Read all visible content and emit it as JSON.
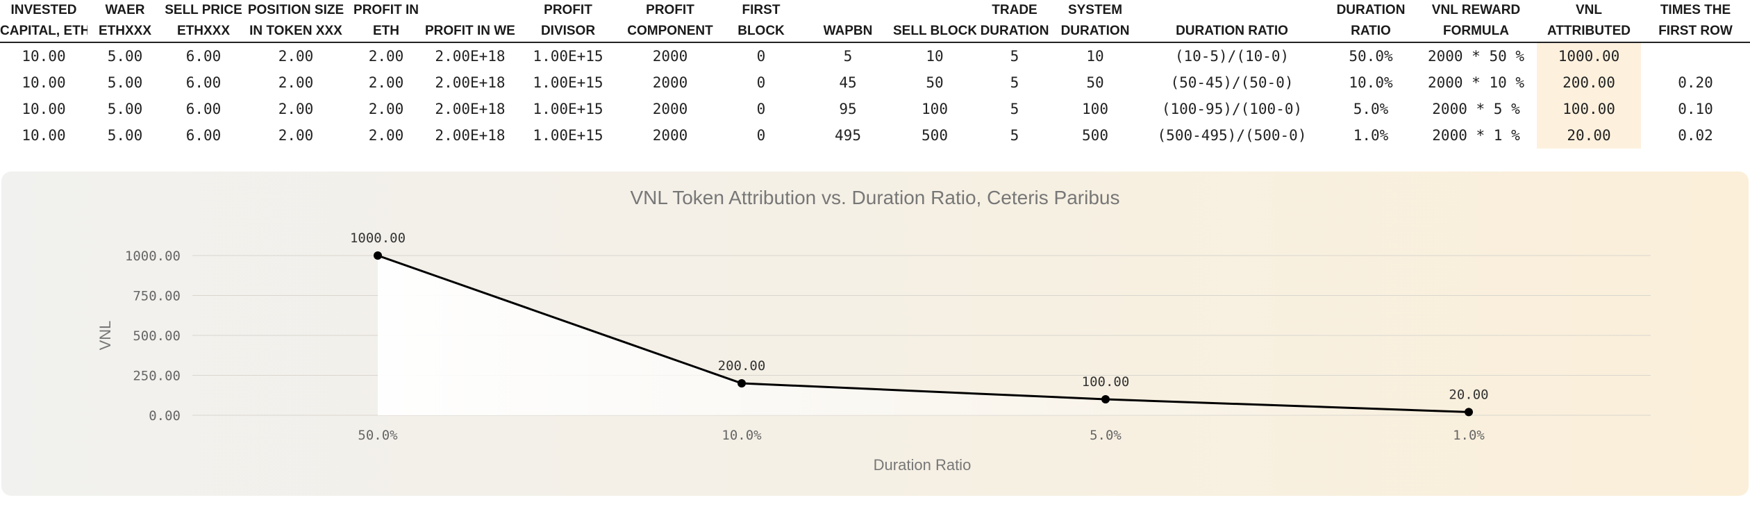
{
  "table": {
    "headers": [
      [
        "INVESTED",
        "CAPITAL, ETH"
      ],
      [
        "WAER",
        "ETHXXX"
      ],
      [
        "SELL PRICE",
        "ETHXXX"
      ],
      [
        "POSITION SIZE",
        "IN TOKEN XXX"
      ],
      [
        "PROFIT IN",
        "ETH"
      ],
      [
        "",
        "PROFIT IN WEI"
      ],
      [
        "PROFIT",
        "DIVISOR"
      ],
      [
        "PROFIT",
        "COMPONENT"
      ],
      [
        "FIRST",
        "BLOCK"
      ],
      [
        "",
        "WAPBN"
      ],
      [
        "",
        "SELL BLOCK"
      ],
      [
        "TRADE",
        "DURATION"
      ],
      [
        "SYSTEM",
        "DURATION"
      ],
      [
        "",
        "DURATION RATIO"
      ],
      [
        "DURATION",
        "RATIO"
      ],
      [
        "VNL REWARD",
        "FORMULA"
      ],
      [
        "VNL",
        "ATTRIBUTED"
      ],
      [
        "TIMES THE",
        "FIRST ROW"
      ]
    ],
    "rows": [
      [
        "10.00",
        "5.00",
        "6.00",
        "2.00",
        "2.00",
        "2.00E+18",
        "1.00E+15",
        "2000",
        "0",
        "5",
        "10",
        "5",
        "10",
        "(10-5)/(10-0)",
        "50.0%",
        "2000 * 50 %",
        "1000.00",
        ""
      ],
      [
        "10.00",
        "5.00",
        "6.00",
        "2.00",
        "2.00",
        "2.00E+18",
        "1.00E+15",
        "2000",
        "0",
        "45",
        "50",
        "5",
        "50",
        "(50-45)/(50-0)",
        "10.0%",
        "2000 * 10 %",
        "200.00",
        "0.20"
      ],
      [
        "10.00",
        "5.00",
        "6.00",
        "2.00",
        "2.00",
        "2.00E+18",
        "1.00E+15",
        "2000",
        "0",
        "95",
        "100",
        "5",
        "100",
        "(100-95)/(100-0)",
        "5.0%",
        "2000 * 5 %",
        "100.00",
        "0.10"
      ],
      [
        "10.00",
        "5.00",
        "6.00",
        "2.00",
        "2.00",
        "2.00E+18",
        "1.00E+15",
        "2000",
        "0",
        "495",
        "500",
        "5",
        "500",
        "(500-495)/(500-0)",
        "1.0%",
        "2000 * 1 %",
        "20.00",
        "0.02"
      ]
    ],
    "orange_columns": [
      9,
      10,
      14
    ],
    "highlight_column": 16
  },
  "colors": {
    "accent_orange": "#f2893a",
    "highlight_fill": "#fdf1de",
    "line": "#000000"
  },
  "chart_data": {
    "type": "line",
    "title": "VNL Token Attribution vs. Duration Ratio, Ceteris Paribus",
    "xlabel": "Duration Ratio",
    "ylabel": "VNL",
    "categories": [
      "50.0%",
      "10.0%",
      "5.0%",
      "1.0%"
    ],
    "values": [
      1000,
      200,
      100,
      20
    ],
    "data_labels": [
      "1000.00",
      "200.00",
      "100.00",
      "20.00"
    ],
    "yticks": [
      "0.00",
      "250.00",
      "500.00",
      "750.00",
      "1000.00"
    ],
    "ylim": [
      0,
      1000
    ],
    "grid": true,
    "legend": "none"
  }
}
